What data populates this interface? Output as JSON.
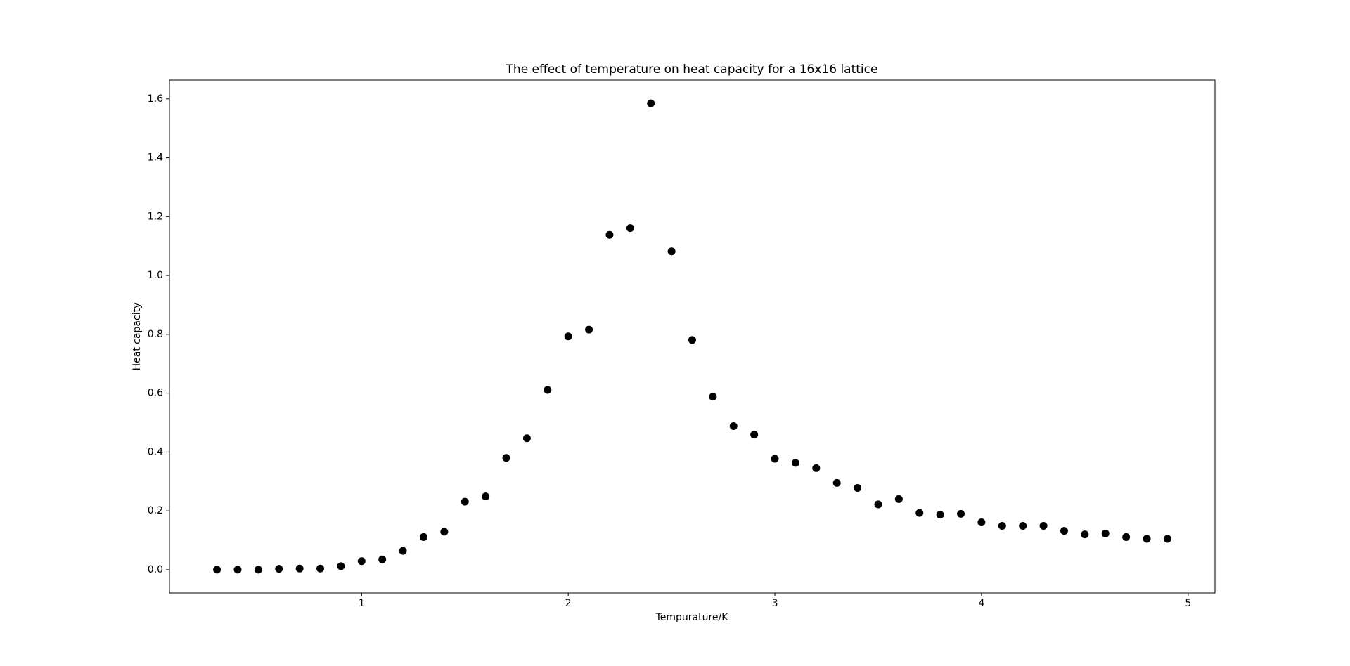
{
  "chart_data": {
    "type": "scatter",
    "title": "The effect of temperature on heat capacity for a 16x16 lattice",
    "xlabel": "Tempurature/K",
    "ylabel": "Heat capacity",
    "color": "#000000",
    "x": [
      0.3,
      0.4,
      0.5,
      0.6,
      0.7,
      0.8,
      0.9,
      1.0,
      1.1,
      1.2,
      1.3,
      1.4,
      1.5,
      1.6,
      1.7,
      1.8,
      1.9,
      2.0,
      2.1,
      2.2,
      2.3,
      2.4,
      2.5,
      2.6,
      2.7,
      2.8,
      2.9,
      3.0,
      3.1,
      3.2,
      3.3,
      3.4,
      3.5,
      3.6,
      3.7,
      3.8,
      3.9,
      4.0,
      4.1,
      4.2,
      4.3,
      4.4,
      4.5,
      4.6,
      4.7,
      4.8,
      4.9
    ],
    "values": [
      0,
      0,
      0,
      0.003,
      0.004,
      0.004,
      0.012,
      0.029,
      0.035,
      0.064,
      0.111,
      0.129,
      0.231,
      0.249,
      0.38,
      0.447,
      0.611,
      0.793,
      0.816,
      1.138,
      1.161,
      1.585,
      1.082,
      0.781,
      0.588,
      0.488,
      0.459,
      0.377,
      0.363,
      0.345,
      0.295,
      0.278,
      0.222,
      0.24,
      0.193,
      0.187,
      0.19,
      0.161,
      0.149,
      0.149,
      0.149,
      0.132,
      0.12,
      0.123,
      0.111,
      0.105,
      0.105
    ],
    "xlim": [
      0.07,
      5.13
    ],
    "ylim": [
      -0.079,
      1.664
    ],
    "xticks": [
      1,
      2,
      3,
      4,
      5
    ],
    "yticks": [
      {
        "value": 0,
        "label": "0.0"
      },
      {
        "value": 0.2,
        "label": "0.2"
      },
      {
        "value": 0.4,
        "label": "0.4"
      },
      {
        "value": 0.6,
        "label": "0.6"
      },
      {
        "value": 0.8,
        "label": "0.8"
      },
      {
        "value": 1.0,
        "label": "1.0"
      },
      {
        "value": 1.2,
        "label": "1.2"
      },
      {
        "value": 1.4,
        "label": "1.4"
      },
      {
        "value": 1.6,
        "label": "1.6"
      }
    ],
    "grid": false
  }
}
